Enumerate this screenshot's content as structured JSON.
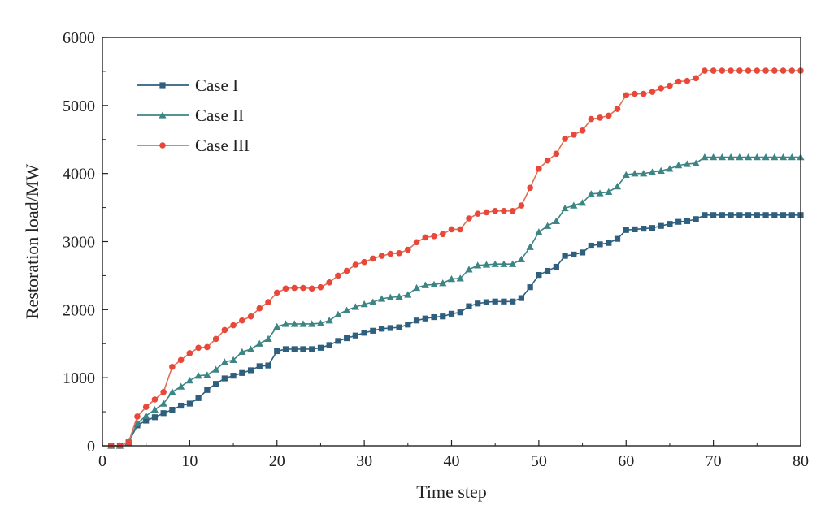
{
  "chart_data": {
    "type": "line",
    "xlabel": "Time step",
    "ylabel": "Restoration load/MW",
    "xlim": [
      0,
      80
    ],
    "ylim": [
      0,
      6000
    ],
    "xticks": [
      0,
      10,
      20,
      30,
      40,
      50,
      60,
      70,
      80
    ],
    "yticks": [
      0,
      1000,
      2000,
      3000,
      4000,
      5000,
      6000
    ],
    "grid": false,
    "legend_position": "top-left",
    "series": [
      {
        "name": "Case I",
        "color": "#2f5f7e",
        "marker": "square",
        "x": [
          1,
          2,
          3,
          4,
          5,
          6,
          7,
          8,
          9,
          10,
          11,
          12,
          13,
          14,
          15,
          16,
          17,
          18,
          19,
          20,
          21,
          22,
          23,
          24,
          25,
          26,
          27,
          28,
          29,
          30,
          31,
          32,
          33,
          34,
          35,
          36,
          37,
          38,
          39,
          40,
          41,
          42,
          43,
          44,
          45,
          46,
          47,
          48,
          49,
          50,
          51,
          52,
          53,
          54,
          55,
          56,
          57,
          58,
          59,
          60,
          61,
          62,
          63,
          64,
          65,
          66,
          67,
          68,
          69,
          70,
          71,
          72,
          73,
          74,
          75,
          76,
          77,
          78,
          79,
          80
        ],
        "y": [
          0,
          0,
          50,
          300,
          370,
          420,
          480,
          530,
          590,
          620,
          700,
          820,
          910,
          990,
          1030,
          1070,
          1110,
          1170,
          1180,
          1390,
          1420,
          1420,
          1420,
          1420,
          1440,
          1480,
          1540,
          1580,
          1620,
          1660,
          1690,
          1720,
          1730,
          1740,
          1780,
          1840,
          1870,
          1890,
          1900,
          1940,
          1960,
          2050,
          2090,
          2110,
          2120,
          2120,
          2120,
          2170,
          2330,
          2510,
          2570,
          2630,
          2790,
          2810,
          2840,
          2940,
          2960,
          2980,
          3040,
          3170,
          3180,
          3190,
          3200,
          3230,
          3260,
          3290,
          3300,
          3330,
          3390,
          3390,
          3390,
          3390,
          3390,
          3390,
          3390,
          3390,
          3390,
          3390,
          3390,
          3390
        ]
      },
      {
        "name": "Case II",
        "color": "#3d8585",
        "marker": "triangle",
        "x": [
          1,
          2,
          3,
          4,
          5,
          6,
          7,
          8,
          9,
          10,
          11,
          12,
          13,
          14,
          15,
          16,
          17,
          18,
          19,
          20,
          21,
          22,
          23,
          24,
          25,
          26,
          27,
          28,
          29,
          30,
          31,
          32,
          33,
          34,
          35,
          36,
          37,
          38,
          39,
          40,
          41,
          42,
          43,
          44,
          45,
          46,
          47,
          48,
          49,
          50,
          51,
          52,
          53,
          54,
          55,
          56,
          57,
          58,
          59,
          60,
          61,
          62,
          63,
          64,
          65,
          66,
          67,
          68,
          69,
          70,
          71,
          72,
          73,
          74,
          75,
          76,
          77,
          78,
          79,
          80
        ],
        "y": [
          0,
          0,
          50,
          330,
          440,
          530,
          620,
          790,
          870,
          960,
          1030,
          1040,
          1120,
          1230,
          1260,
          1380,
          1420,
          1500,
          1570,
          1750,
          1790,
          1790,
          1790,
          1790,
          1800,
          1840,
          1930,
          1990,
          2040,
          2080,
          2110,
          2160,
          2180,
          2190,
          2220,
          2320,
          2360,
          2370,
          2390,
          2450,
          2460,
          2590,
          2650,
          2660,
          2670,
          2670,
          2670,
          2740,
          2920,
          3140,
          3230,
          3300,
          3490,
          3530,
          3570,
          3700,
          3710,
          3730,
          3810,
          3980,
          4000,
          4000,
          4020,
          4040,
          4070,
          4120,
          4140,
          4150,
          4240,
          4240,
          4240,
          4240,
          4240,
          4240,
          4240,
          4240,
          4240,
          4240,
          4240,
          4240
        ]
      },
      {
        "name": "Case III",
        "color": "#e8473a",
        "line_color": "#e07055",
        "marker": "circle",
        "x": [
          1,
          2,
          3,
          4,
          5,
          6,
          7,
          8,
          9,
          10,
          11,
          12,
          13,
          14,
          15,
          16,
          17,
          18,
          19,
          20,
          21,
          22,
          23,
          24,
          25,
          26,
          27,
          28,
          29,
          30,
          31,
          32,
          33,
          34,
          35,
          36,
          37,
          38,
          39,
          40,
          41,
          42,
          43,
          44,
          45,
          46,
          47,
          48,
          49,
          50,
          51,
          52,
          53,
          54,
          55,
          56,
          57,
          58,
          59,
          60,
          61,
          62,
          63,
          64,
          65,
          66,
          67,
          68,
          69,
          70,
          71,
          72,
          73,
          74,
          75,
          76,
          77,
          78,
          79,
          80
        ],
        "y": [
          0,
          0,
          50,
          430,
          570,
          680,
          790,
          1160,
          1260,
          1360,
          1440,
          1450,
          1570,
          1700,
          1770,
          1840,
          1900,
          2020,
          2110,
          2250,
          2310,
          2320,
          2320,
          2310,
          2330,
          2400,
          2500,
          2570,
          2660,
          2700,
          2750,
          2790,
          2820,
          2830,
          2880,
          2990,
          3060,
          3080,
          3110,
          3180,
          3180,
          3340,
          3410,
          3430,
          3450,
          3450,
          3450,
          3530,
          3790,
          4070,
          4190,
          4290,
          4510,
          4570,
          4630,
          4800,
          4820,
          4850,
          4950,
          5150,
          5170,
          5170,
          5200,
          5250,
          5290,
          5350,
          5360,
          5400,
          5510,
          5510,
          5510,
          5510,
          5510,
          5510,
          5510,
          5510,
          5510,
          5510,
          5510,
          5510
        ]
      }
    ]
  }
}
